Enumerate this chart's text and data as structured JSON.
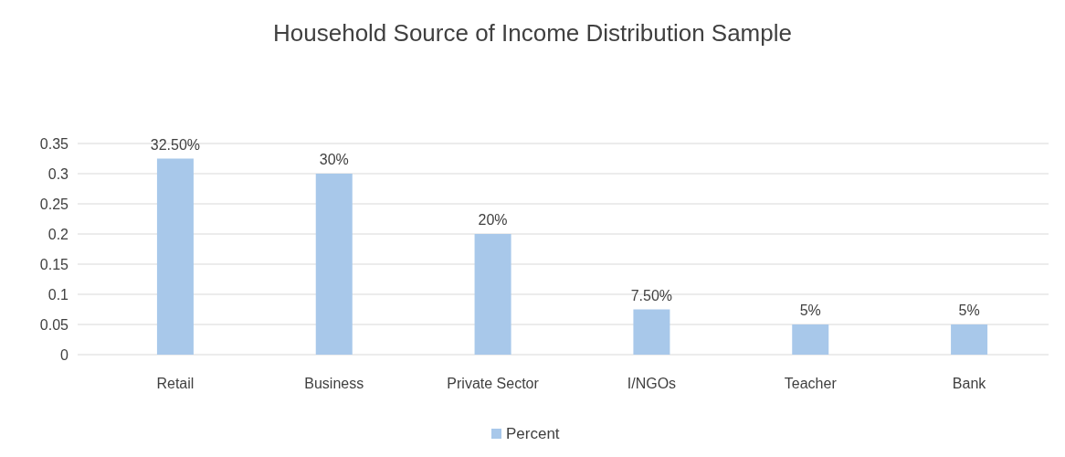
{
  "chart_data": {
    "type": "bar",
    "title": "Household Source of Income Distribution Sample",
    "categories": [
      "Retail",
      "Business",
      "Private Sector",
      "I/NGOs",
      "Teacher",
      "Bank"
    ],
    "series": [
      {
        "name": "Percent",
        "color": "#a8c8ea",
        "values": [
          0.325,
          0.3,
          0.2,
          0.075,
          0.05,
          0.05
        ],
        "value_labels": [
          "32.50%",
          "30%",
          "20%",
          "7.50%",
          "5%",
          "5%"
        ]
      }
    ],
    "ylim": [
      0,
      0.35
    ],
    "yticks": [
      0,
      0.05,
      0.1,
      0.15,
      0.2,
      0.25,
      0.3,
      0.35
    ],
    "grid": "y",
    "legend": "bottom"
  }
}
